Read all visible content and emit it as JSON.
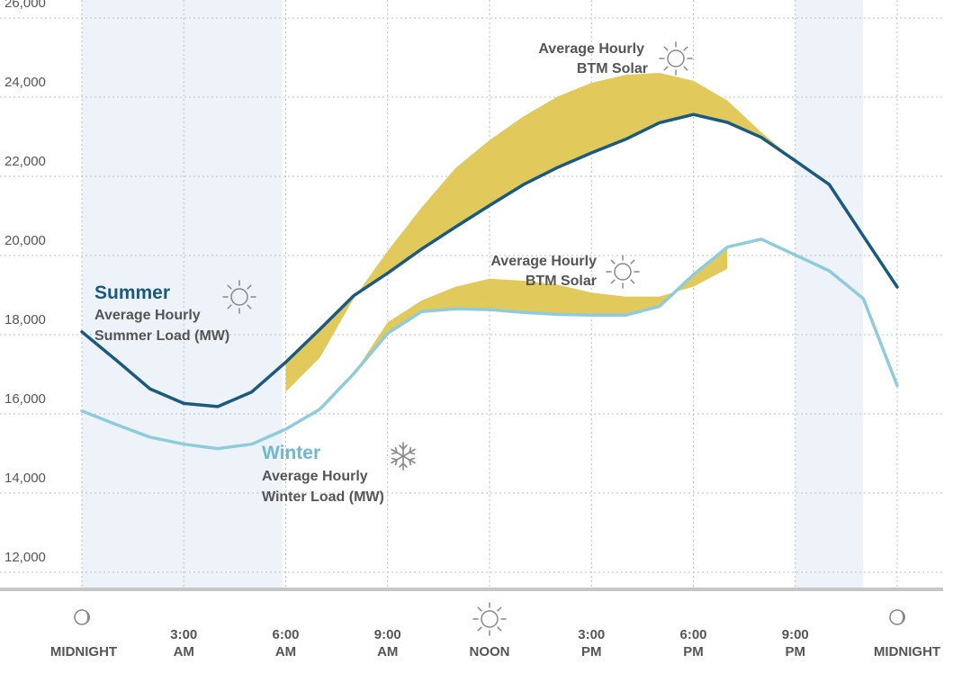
{
  "chart_data": {
    "type": "area",
    "ylim": [
      11000,
      26500
    ],
    "y_ticks": [
      12000,
      14000,
      16000,
      18000,
      20000,
      22000,
      24000,
      26000
    ],
    "y_tick_labels": [
      "12,000",
      "14,000",
      "16,000",
      "18,000",
      "20,000",
      "22,000",
      "24,000",
      "26,000"
    ],
    "xlim": [
      0,
      24
    ],
    "x_ticks": [
      {
        "hour": 0,
        "line1": "",
        "line2": "MIDNIGHT",
        "icon": "moon-icon"
      },
      {
        "hour": 3,
        "line1": "3:00",
        "line2": "AM"
      },
      {
        "hour": 6,
        "line1": "6:00",
        "line2": "AM"
      },
      {
        "hour": 9,
        "line1": "9:00",
        "line2": "AM"
      },
      {
        "hour": 12,
        "line1": "",
        "line2": "NOON",
        "icon": "sun-icon"
      },
      {
        "hour": 15,
        "line1": "3:00",
        "line2": "PM"
      },
      {
        "hour": 18,
        "line1": "6:00",
        "line2": "PM"
      },
      {
        "hour": 21,
        "line1": "9:00",
        "line2": "PM"
      },
      {
        "hour": 24,
        "line1": "",
        "line2": "MIDNIGHT",
        "icon": "moon-icon"
      }
    ],
    "night_shading": [
      [
        0,
        5.9
      ],
      [
        21,
        23
      ]
    ],
    "grid": true,
    "colors": {
      "summer": "#1b5a80",
      "winter": "#8ecbdc",
      "solar": "#e2c95c",
      "night": "#edf3f8",
      "grid": "#c2c2c2",
      "axis": "#c6c6c6"
    },
    "series": [
      {
        "key": "summer_load",
        "x": [
          0,
          1,
          2,
          3,
          4,
          5,
          6,
          7,
          8,
          9,
          10,
          11,
          12,
          13,
          14,
          15,
          16,
          17,
          18,
          19,
          20,
          21,
          22,
          23,
          24
        ],
        "values": [
          17960,
          17250,
          16520,
          16150,
          16070,
          16440,
          17190,
          18020,
          18870,
          19440,
          20050,
          20610,
          21150,
          21680,
          22110,
          22480,
          22820,
          23240,
          23450,
          23250,
          22870,
          22280,
          21680,
          20380,
          19090
        ]
      },
      {
        "key": "summer_gross",
        "x": [
          6,
          7,
          8,
          9,
          10,
          11,
          12,
          13,
          14,
          15,
          16,
          17,
          18,
          19,
          20,
          21
        ],
        "values": [
          16440,
          17300,
          18800,
          20000,
          21100,
          22100,
          22800,
          23400,
          23900,
          24250,
          24450,
          24500,
          24300,
          23800,
          23000,
          22280
        ]
      },
      {
        "key": "winter_load",
        "x": [
          0,
          1,
          2,
          3,
          4,
          5,
          6,
          7,
          8,
          9,
          10,
          11,
          12,
          13,
          14,
          15,
          16,
          17,
          18,
          19,
          20,
          21,
          22,
          23,
          24
        ],
        "values": [
          15960,
          15620,
          15300,
          15120,
          15010,
          15120,
          15500,
          16000,
          16900,
          17920,
          18470,
          18540,
          18520,
          18450,
          18400,
          18380,
          18380,
          18600,
          19400,
          20100,
          20300,
          19900,
          19500,
          18800,
          16600
        ]
      },
      {
        "key": "winter_gross",
        "x": [
          8,
          9,
          10,
          11,
          12,
          13,
          14,
          15,
          16,
          17,
          18,
          19
        ],
        "values": [
          16900,
          18200,
          18750,
          19100,
          19300,
          19250,
          19150,
          18950,
          18850,
          18850,
          19100,
          19550
        ]
      }
    ],
    "annotations": {
      "summer_title": "Summer",
      "summer_line1": "Average Hourly",
      "summer_line2": "Summer Load (MW)",
      "winter_title": "Winter",
      "winter_line1": "Average Hourly",
      "winter_line2": "Winter Load (MW)",
      "solar_summer_line1": "Average Hourly",
      "solar_summer_line2": "BTM Solar",
      "solar_winter_line1": "Average Hourly",
      "solar_winter_line2": "BTM Solar"
    }
  }
}
